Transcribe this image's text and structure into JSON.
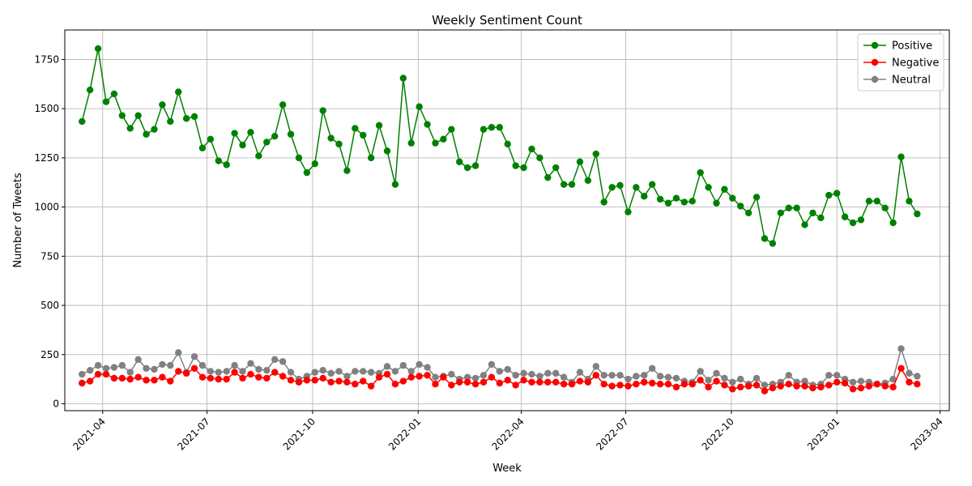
{
  "chart_data": {
    "type": "line",
    "title": "Weekly Sentiment Count",
    "xlabel": "Week",
    "ylabel": "Number of Tweets",
    "ylim": [
      -35,
      1900
    ],
    "xlim": [
      "2021-02-27",
      "2023-04-09"
    ],
    "yticks": [
      0,
      250,
      500,
      750,
      1000,
      1250,
      1500,
      1750
    ],
    "xticks": [
      "2021-04",
      "2021-07",
      "2021-10",
      "2022-01",
      "2022-04",
      "2022-07",
      "2022-10",
      "2023-01",
      "2023-04"
    ],
    "grid": true,
    "legend_position": "top-right",
    "start_week": "2021-03-14",
    "series": [
      {
        "name": "Positive",
        "color": "#008000",
        "values": [
          1435,
          1595,
          1805,
          1535,
          1575,
          1465,
          1400,
          1465,
          1370,
          1395,
          1520,
          1435,
          1585,
          1450,
          1460,
          1300,
          1345,
          1235,
          1215,
          1375,
          1315,
          1380,
          1260,
          1330,
          1360,
          1520,
          1370,
          1250,
          1175,
          1220,
          1490,
          1350,
          1320,
          1185,
          1400,
          1365,
          1250,
          1415,
          1285,
          1115,
          1655,
          1325,
          1510,
          1420,
          1325,
          1345,
          1395,
          1230,
          1200,
          1210,
          1395,
          1405,
          1405,
          1320,
          1210,
          1200,
          1295,
          1250,
          1150,
          1200,
          1115,
          1115,
          1230,
          1135,
          1270,
          1025,
          1100,
          1110,
          975,
          1100,
          1055,
          1115,
          1040,
          1020,
          1045,
          1025,
          1030,
          1175,
          1100,
          1020,
          1090,
          1045,
          1005,
          970,
          1050,
          840,
          815,
          970,
          995,
          995,
          910,
          970,
          945,
          1060,
          1070,
          950,
          920,
          935,
          1030,
          1030,
          995,
          920,
          1255,
          1030,
          965
        ]
      },
      {
        "name": "Negative",
        "color": "#ff0000",
        "values": [
          105,
          115,
          150,
          150,
          130,
          130,
          125,
          135,
          120,
          120,
          135,
          115,
          165,
          155,
          180,
          135,
          130,
          125,
          125,
          160,
          130,
          150,
          135,
          130,
          160,
          140,
          120,
          110,
          120,
          120,
          130,
          110,
          115,
          110,
          100,
          115,
          90,
          135,
          150,
          100,
          115,
          135,
          140,
          145,
          100,
          135,
          95,
          110,
          110,
          100,
          110,
          135,
          105,
          120,
          95,
          120,
          110,
          110,
          110,
          110,
          100,
          100,
          115,
          110,
          145,
          100,
          90,
          95,
          90,
          100,
          110,
          105,
          100,
          100,
          85,
          100,
          100,
          120,
          85,
          115,
          95,
          75,
          85,
          90,
          95,
          65,
          80,
          90,
          100,
          90,
          90,
          80,
          85,
          95,
          110,
          105,
          75,
          80,
          90,
          100,
          90,
          85,
          180,
          110,
          100
        ]
      },
      {
        "name": "Neutral",
        "color": "#808080",
        "values": [
          150,
          170,
          195,
          180,
          185,
          195,
          160,
          225,
          180,
          175,
          200,
          195,
          260,
          160,
          240,
          195,
          165,
          160,
          165,
          195,
          165,
          205,
          175,
          170,
          225,
          215,
          160,
          125,
          140,
          160,
          170,
          155,
          165,
          140,
          165,
          165,
          160,
          155,
          190,
          165,
          195,
          165,
          200,
          185,
          135,
          140,
          150,
          125,
          135,
          130,
          145,
          200,
          165,
          175,
          145,
          155,
          150,
          140,
          155,
          155,
          135,
          110,
          160,
          125,
          190,
          145,
          145,
          145,
          125,
          140,
          145,
          180,
          140,
          135,
          130,
          115,
          110,
          165,
          120,
          155,
          130,
          110,
          125,
          100,
          130,
          95,
          100,
          110,
          145,
          110,
          115,
          95,
          100,
          145,
          145,
          125,
          110,
          115,
          110,
          100,
          105,
          125,
          280,
          155,
          140
        ]
      }
    ]
  }
}
